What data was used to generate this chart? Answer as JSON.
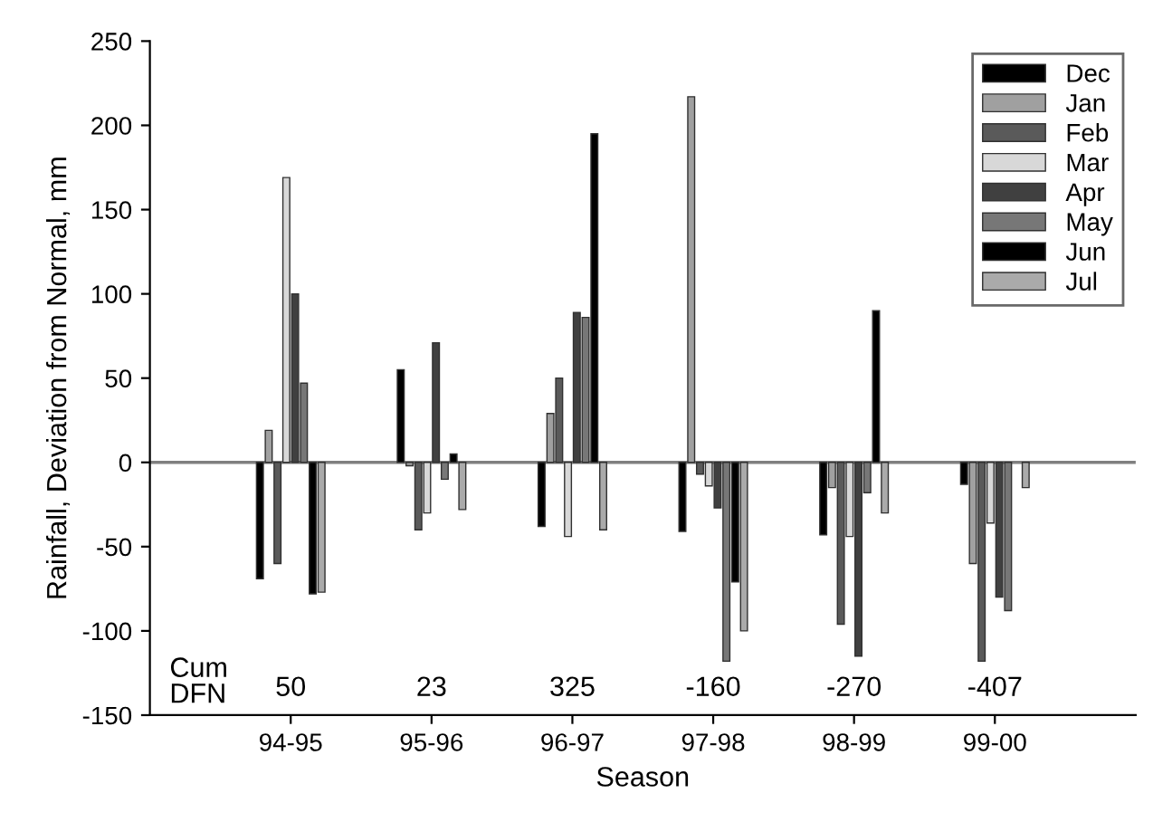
{
  "chart_data": {
    "type": "bar",
    "xlabel": "Season",
    "ylabel": "Rainfall, Deviation from Normal, mm",
    "categories": [
      "94-95",
      "95-96",
      "96-97",
      "97-98",
      "98-99",
      "99-00"
    ],
    "series": [
      {
        "name": "Dec",
        "color": "#000000",
        "values": [
          -69,
          55,
          -38,
          -41,
          -43,
          -13
        ]
      },
      {
        "name": "Jan",
        "color": "#a0a0a0",
        "values": [
          19,
          -2,
          29,
          217,
          -15,
          -60
        ]
      },
      {
        "name": "Feb",
        "color": "#5a5a5a",
        "values": [
          -60,
          -40,
          50,
          -7,
          -96,
          -118
        ]
      },
      {
        "name": "Mar",
        "color": "#d8d8d8",
        "values": [
          169,
          -30,
          -44,
          -14,
          -44,
          -36
        ]
      },
      {
        "name": "Apr",
        "color": "#404040",
        "values": [
          100,
          71,
          89,
          -27,
          -115,
          -80
        ]
      },
      {
        "name": "May",
        "color": "#777777",
        "values": [
          47,
          -10,
          86,
          -118,
          -18,
          -88
        ]
      },
      {
        "name": "Jun",
        "color": "#000000",
        "values": [
          -78,
          5,
          195,
          -71,
          90,
          null
        ]
      },
      {
        "name": "Jul",
        "color": "#aaaaaa",
        "values": [
          -77,
          -28,
          -40,
          -100,
          -30,
          -15
        ]
      }
    ],
    "ylim": [
      -150,
      250
    ],
    "yticks": [
      -150,
      -100,
      -50,
      0,
      50,
      100,
      150,
      200,
      250
    ],
    "ref_lines": [
      {
        "axis": "y",
        "value": 0,
        "color": "#808080"
      }
    ],
    "annotations": [
      "Cum\nDFN",
      "50",
      "23",
      "325",
      "-160",
      "-270",
      "-407"
    ],
    "legend": "top right",
    "grid": false
  }
}
